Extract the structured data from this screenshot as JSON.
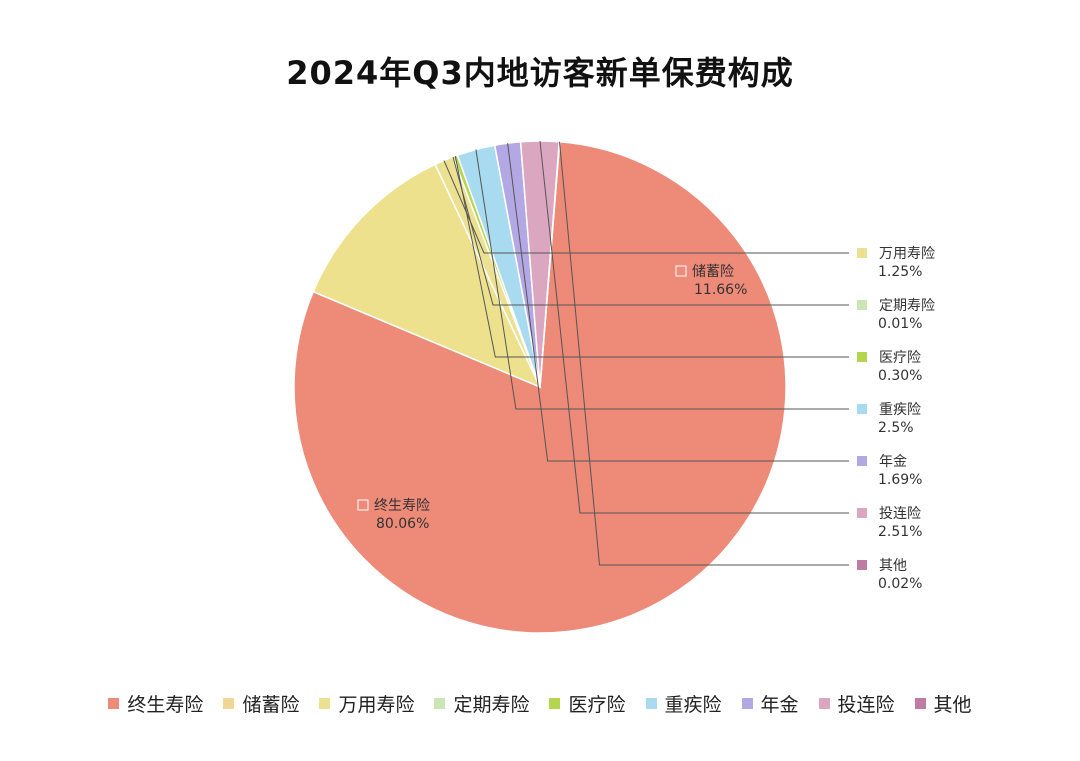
{
  "chart_data": {
    "type": "pie",
    "title": "2024年Q3内地访客新单保费构成",
    "slices": [
      {
        "label": "终生寿险",
        "value": 80.06,
        "display": "80.06%",
        "color": "#ed8a78"
      },
      {
        "label": "储蓄险",
        "value": 11.66,
        "display": "11.66%",
        "color": "#ede18e"
      },
      {
        "label": "万用寿险",
        "value": 1.25,
        "display": "1.25%",
        "color": "#ebe190"
      },
      {
        "label": "定期寿险",
        "value": 0.01,
        "display": "0.01%",
        "color": "#c9e6b4"
      },
      {
        "label": "医疗险",
        "value": 0.3,
        "display": "0.30%",
        "color": "#b4d64c"
      },
      {
        "label": "重疾险",
        "value": 2.5,
        "display": "2.5%",
        "color": "#a9dbf0"
      },
      {
        "label": "年金",
        "value": 1.69,
        "display": "1.69%",
        "color": "#b3a7e4"
      },
      {
        "label": "投连险",
        "value": 2.51,
        "display": "2.51%",
        "color": "#dba6c0"
      },
      {
        "label": "其他",
        "value": 0.02,
        "display": "0.02%",
        "color": "#c07ba2"
      }
    ],
    "legend_swatch_colors": [
      "#ed8a78",
      "#f1d796",
      "#ebe190",
      "#c9e6b4",
      "#b4d64c",
      "#a9dbf0",
      "#b3a7e4",
      "#dba6c0",
      "#c07ba2"
    ],
    "legend_position": "bottom"
  }
}
